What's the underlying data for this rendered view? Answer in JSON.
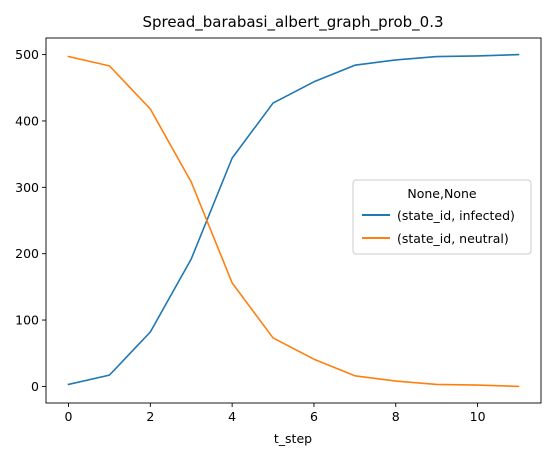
{
  "chart_data": {
    "type": "line",
    "title": "Spread_barabasi_albert_graph_prob_0.3",
    "xlabel": "t_step",
    "ylabel": "",
    "x": [
      0,
      1,
      2,
      3,
      4,
      5,
      6,
      7,
      8,
      9,
      10,
      11
    ],
    "xlim": [
      -0.55,
      11.55
    ],
    "ylim": [
      -25,
      525
    ],
    "xticks": [
      0,
      2,
      4,
      6,
      8,
      10
    ],
    "yticks": [
      0,
      100,
      200,
      300,
      400,
      500
    ],
    "grid": false,
    "legend": {
      "title": "None,None",
      "placement": "center-right"
    },
    "series": [
      {
        "name": "(state_id, infected)",
        "color": "#1f77b4",
        "values": [
          3,
          17,
          82,
          192,
          344,
          427,
          459,
          484,
          492,
          497,
          498,
          500
        ]
      },
      {
        "name": "(state_id, neutral)",
        "color": "#ff7f0e",
        "values": [
          497,
          483,
          418,
          308,
          156,
          73,
          41,
          16,
          8,
          3,
          2,
          0
        ]
      }
    ]
  }
}
